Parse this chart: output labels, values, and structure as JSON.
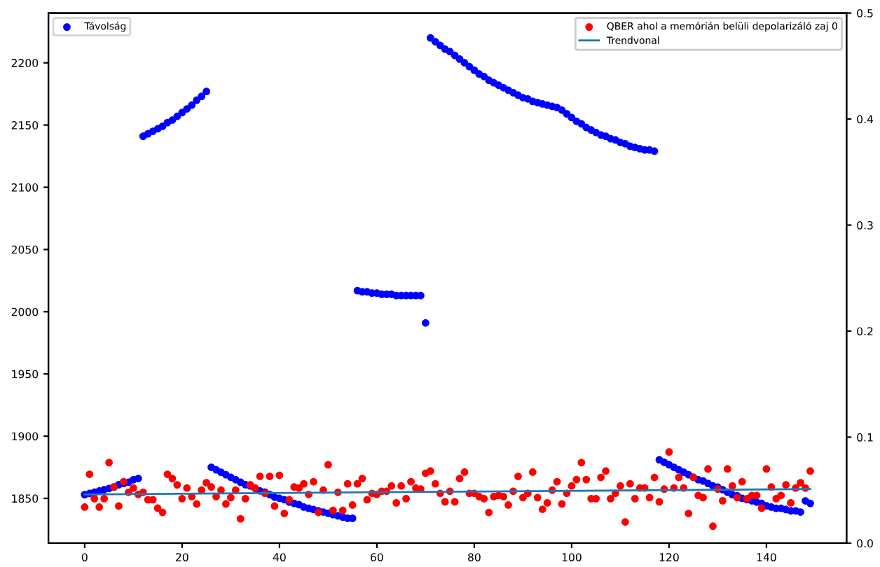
{
  "chart_data": {
    "type": "scatter",
    "marker": "circle",
    "legend": "top",
    "x": [
      0,
      1,
      2,
      3,
      4,
      5,
      6,
      7,
      8,
      9,
      10,
      11,
      12,
      13,
      14,
      15,
      16,
      17,
      18,
      19,
      20,
      21,
      22,
      23,
      24,
      25,
      26,
      27,
      28,
      29,
      30,
      31,
      32,
      33,
      34,
      35,
      36,
      37,
      38,
      39,
      40,
      41,
      42,
      43,
      44,
      45,
      46,
      47,
      48,
      49,
      50,
      51,
      52,
      53,
      54,
      55,
      56,
      57,
      58,
      59,
      60,
      61,
      62,
      63,
      64,
      65,
      66,
      67,
      68,
      69,
      70,
      71,
      72,
      73,
      74,
      75,
      76,
      77,
      78,
      79,
      80,
      81,
      82,
      83,
      84,
      85,
      86,
      87,
      88,
      89,
      90,
      91,
      92,
      93,
      94,
      95,
      96,
      97,
      98,
      99,
      100,
      101,
      102,
      103,
      104,
      105,
      106,
      107,
      108,
      109,
      110,
      111,
      112,
      113,
      114,
      115,
      116,
      117,
      118,
      119,
      120,
      121,
      122,
      123,
      124,
      125,
      126,
      127,
      128,
      129,
      130,
      131,
      132,
      133,
      134,
      135,
      136,
      137,
      138,
      139,
      140,
      141,
      142,
      143,
      144,
      145,
      146,
      147,
      148,
      149
    ],
    "xlim": [
      -7.45,
      156.45
    ],
    "xticks": [
      0,
      20,
      40,
      60,
      80,
      100,
      120,
      140
    ],
    "ylim": [
      1814,
      2240
    ],
    "yticks": [
      1850,
      1900,
      1950,
      2000,
      2050,
      2100,
      2150,
      2200
    ],
    "y2lim": [
      0,
      0.5
    ],
    "y2ticks": [
      {
        "value": 0,
        "label": "0.0"
      },
      0.1,
      0.2,
      0.3,
      0.4,
      0.5
    ],
    "series": [
      {
        "name": "Távolság",
        "color": "#0000ff",
        "values": [
          1853,
          1854,
          1855,
          1856,
          1857,
          1858,
          1859,
          1861,
          1862,
          1863,
          1865,
          1866,
          2141,
          2143,
          2145,
          2147,
          2149,
          2152,
          2154,
          2157,
          2160,
          2163,
          2166,
          2170,
          2173,
          2177,
          1875,
          1873,
          1871,
          1869,
          1867,
          1865,
          1863,
          1861,
          1860,
          1858,
          1856,
          1855,
          1853,
          1851,
          1850,
          1849,
          1847,
          1846,
          1845,
          1843,
          1842,
          1841,
          1840,
          1839,
          1838,
          1837,
          1836,
          1835,
          1834,
          1834,
          2017,
          2016,
          2016,
          2015,
          2015,
          2014,
          2014,
          2014,
          2013,
          2013,
          2013,
          2013,
          2013,
          2013,
          1991,
          2220,
          2217,
          2214,
          2211,
          2209,
          2206,
          2203,
          2200,
          2197,
          2194,
          2191,
          2189,
          2186,
          2184,
          2182,
          2180,
          2178,
          2176,
          2174,
          2172,
          2171,
          2169,
          2168,
          2167,
          2166,
          2165,
          2164,
          2162,
          2159,
          2156,
          2153,
          2151,
          2148,
          2146,
          2144,
          2142,
          2141,
          2139,
          2138,
          2136,
          2135,
          2133,
          2132,
          2131,
          2130,
          2130,
          2129,
          1881,
          1879,
          1877,
          1875,
          1873,
          1871,
          1869,
          1867,
          1865,
          1864,
          1862,
          1860,
          1859,
          1857,
          1855,
          1853,
          1852,
          1850,
          1849,
          1848,
          1847,
          1846,
          1844,
          1843,
          1842,
          1842,
          1841,
          1840,
          1840,
          1839,
          1848,
          1846
        ]
      },
      {
        "name": "QBER ahol a memórián belüli depolarizáló zaj 0",
        "color": "#ff0000",
        "axis": "y2",
        "values": [
          0.034,
          0.065,
          0.042,
          0.034,
          0.042,
          0.076,
          0.053,
          0.035,
          0.058,
          0.048,
          0.052,
          0.046,
          0.048,
          0.041,
          0.041,
          0.033,
          0.029,
          0.065,
          0.061,
          0.055,
          0.042,
          0.052,
          0.044,
          0.037,
          0.05,
          0.057,
          0.053,
          0.044,
          0.05,
          0.037,
          0.043,
          0.05,
          0.023,
          0.042,
          0.055,
          0.052,
          0.063,
          0.047,
          0.063,
          0.035,
          0.064,
          0.028,
          0.041,
          0.053,
          0.052,
          0.056,
          0.046,
          0.058,
          0.029,
          0.05,
          0.074,
          0.031,
          0.048,
          0.031,
          0.056,
          0.036,
          0.056,
          0.061,
          0.041,
          0.047,
          0.046,
          0.049,
          0.049,
          0.054,
          0.038,
          0.054,
          0.042,
          0.058,
          0.052,
          0.051,
          0.066,
          0.068,
          0.056,
          0.047,
          0.039,
          0.049,
          0.039,
          0.061,
          0.067,
          0.047,
          0.047,
          0.044,
          0.042,
          0.029,
          0.044,
          0.045,
          0.044,
          0.036,
          0.049,
          0.063,
          0.043,
          0.047,
          0.067,
          0.043,
          0.032,
          0.038,
          0.05,
          0.058,
          0.037,
          0.047,
          0.054,
          0.06,
          0.076,
          0.06,
          0.042,
          0.042,
          0.062,
          0.068,
          0.042,
          0.047,
          0.054,
          0.02,
          0.056,
          0.042,
          0.052,
          0.052,
          0.043,
          0.062,
          0.039,
          0.051,
          0.086,
          0.052,
          0.062,
          0.052,
          0.028,
          0.062,
          0.045,
          0.043,
          0.07,
          0.016,
          0.051,
          0.04,
          0.07,
          0.054,
          0.043,
          0.058,
          0.042,
          0.045,
          0.045,
          0.033,
          0.07,
          0.053,
          0.042,
          0.045,
          0.055,
          0.038,
          0.052,
          0.057,
          0.052,
          0.068
        ]
      },
      {
        "name": "Trendvonal",
        "type": "line",
        "color": "#1f77b4",
        "axis": "y2",
        "marker": "none",
        "line_style": "solid",
        "x": [
          0,
          149
        ],
        "values": [
          0.046,
          0.051
        ]
      }
    ]
  }
}
